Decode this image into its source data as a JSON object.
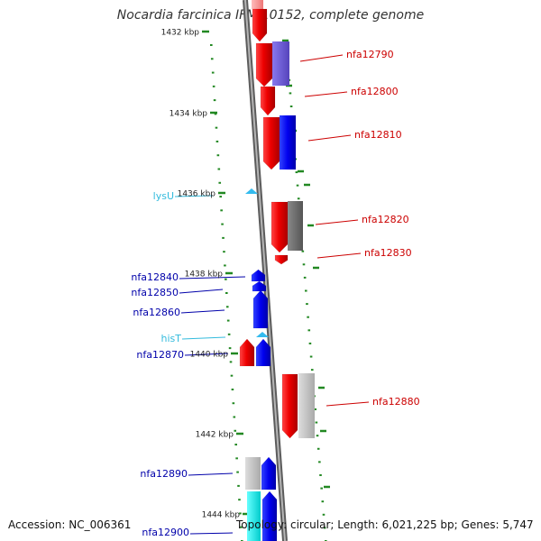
{
  "title": "Nocardia farcinica IFM 10152, complete genome",
  "accession_label": "Accession:",
  "accession": "NC_006361",
  "topology_label": "Topology:",
  "topology": "circular",
  "length_label": "Length:",
  "length": "6,021,225 bp",
  "genes_label": "Genes:",
  "genes": "5,747",
  "scale_ticks": [
    "1432 kbp",
    "1434 kbp",
    "1436 kbp",
    "1438 kbp",
    "1440 kbp",
    "1442 kbp",
    "1444 kbp"
  ],
  "colors": {
    "forward_label": "#cc0000",
    "reverse_label": "#0000aa",
    "rna_label": "#33bbdd",
    "ruler": "#228822",
    "backbone": "#888888"
  },
  "genes_right": [
    {
      "label": "nfa12790"
    },
    {
      "label": "nfa12800"
    },
    {
      "label": "nfa12810"
    },
    {
      "label": "nfa12820"
    },
    {
      "label": "nfa12830"
    },
    {
      "label": "nfa12880"
    }
  ],
  "genes_left": [
    {
      "label": "lysU",
      "kind": "rna"
    },
    {
      "label": "nfa12840",
      "kind": "gene"
    },
    {
      "label": "nfa12850",
      "kind": "gene"
    },
    {
      "label": "nfa12860",
      "kind": "gene"
    },
    {
      "label": "hisT",
      "kind": "rna"
    },
    {
      "label": "nfa12870",
      "kind": "gene"
    },
    {
      "label": "nfa12890",
      "kind": "gene"
    },
    {
      "label": "nfa12900",
      "kind": "gene"
    }
  ]
}
